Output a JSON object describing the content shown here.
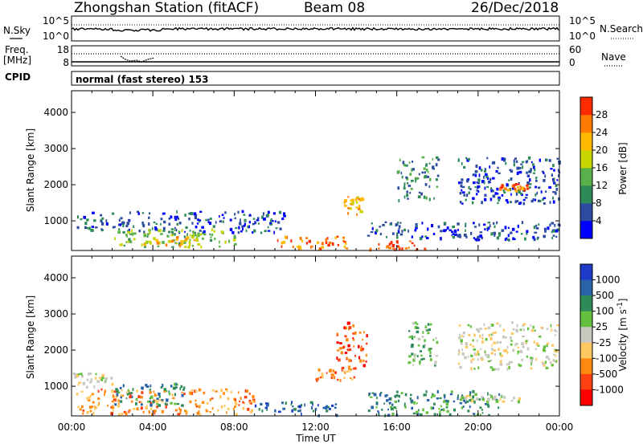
{
  "header": {
    "station": "Zhongshan Station (fitACF)",
    "beam": "Beam 08",
    "date": "26/Dec/2018"
  },
  "strips": {
    "nsky_label": "N.Sky",
    "nsky_ticks": [
      "10^5",
      "10^0"
    ],
    "nsearch_ticks": [
      "10^5",
      "10^0"
    ],
    "nsearch_label": "N.Search",
    "freq_label_1": "Freq.",
    "freq_label_2": "[MHz]",
    "freq_ticks": [
      "18",
      "8"
    ],
    "nave_ticks": [
      "60",
      "0"
    ],
    "nave_label": "Nave",
    "cpid_label": "CPID",
    "cpid_text": "normal (fast stereo) 153"
  },
  "time_ticks": [
    "00:00",
    "04:00",
    "08:00",
    "12:00",
    "16:00",
    "20:00",
    "00:00"
  ],
  "x_label": "Time UT",
  "chart_data": [
    {
      "type": "heatmap",
      "name": "power",
      "ylabel": "Slant Range [km]",
      "x_unit": "hours UT",
      "xlim": [
        0,
        24
      ],
      "ylim": [
        180,
        4600
      ],
      "y_ticks": [
        "1000",
        "2000",
        "3000",
        "4000"
      ],
      "colorbar": {
        "label": "Power [dB]",
        "ticks": [
          "4",
          "8",
          "12",
          "16",
          "20",
          "24",
          "28"
        ],
        "colors": [
          "#0000ff",
          "#2c4ca0",
          "#2e8b57",
          "#5ab04a",
          "#c8d400",
          "#ffb800",
          "#ff7a00",
          "#ff2a00"
        ]
      },
      "regions": [
        {
          "t": [
            0.2,
            10.5
          ],
          "r": [
            700,
            1300
          ],
          "level": 1
        },
        {
          "t": [
            2.0,
            8.0
          ],
          "r": [
            300,
            800
          ],
          "level": 3
        },
        {
          "t": [
            3.5,
            6.5
          ],
          "r": [
            350,
            650
          ],
          "level": 5
        },
        {
          "t": [
            10.0,
            13.5
          ],
          "r": [
            220,
            600
          ],
          "level": 6
        },
        {
          "t": [
            13.3,
            14.3
          ],
          "r": [
            1200,
            1700
          ],
          "level": 5
        },
        {
          "t": [
            14.5,
            24.0
          ],
          "r": [
            500,
            1000
          ],
          "level": 1
        },
        {
          "t": [
            14.5,
            17.5
          ],
          "r": [
            220,
            500
          ],
          "level": 7
        },
        {
          "t": [
            16.0,
            18.0
          ],
          "r": [
            1600,
            2800
          ],
          "level": 2
        },
        {
          "t": [
            19.0,
            24.0
          ],
          "r": [
            1500,
            2800
          ],
          "level": 1
        },
        {
          "t": [
            21.0,
            22.5
          ],
          "r": [
            1850,
            2050
          ],
          "level": 6
        }
      ]
    },
    {
      "type": "heatmap",
      "name": "velocity",
      "ylabel": "Slant Range [km]",
      "x_unit": "hours UT",
      "xlim": [
        0,
        24
      ],
      "ylim": [
        180,
        4600
      ],
      "y_ticks": [
        "1000",
        "2000",
        "3000",
        "4000"
      ],
      "colorbar": {
        "label": "Velocity [m s",
        "label_sup": "-1",
        "label_end": "]",
        "ticks": [
          "1000",
          "500",
          "100",
          "25",
          "-25",
          "-100",
          "-500",
          "-1000"
        ],
        "colors": [
          "#1e3cc8",
          "#2a62a8",
          "#2e8b57",
          "#66c040",
          "#c8c8c0",
          "#ffc860",
          "#ff8a10",
          "#ff4010",
          "#ff0000"
        ]
      },
      "regions": [
        {
          "t": [
            0.2,
            9.0
          ],
          "r": [
            250,
            950
          ],
          "level": 6
        },
        {
          "t": [
            0.0,
            2.0
          ],
          "r": [
            1000,
            1400
          ],
          "level": 4
        },
        {
          "t": [
            2.0,
            5.5
          ],
          "r": [
            500,
            1100
          ],
          "level": 2
        },
        {
          "t": [
            9.0,
            13.0
          ],
          "r": [
            220,
            600
          ],
          "level": 1
        },
        {
          "t": [
            12.0,
            14.0
          ],
          "r": [
            1200,
            1500
          ],
          "level": 6
        },
        {
          "t": [
            13.0,
            14.5
          ],
          "r": [
            1500,
            2800
          ],
          "level": 7
        },
        {
          "t": [
            14.5,
            21.0
          ],
          "r": [
            220,
            900
          ],
          "level": 2
        },
        {
          "t": [
            16.5,
            18.0
          ],
          "r": [
            1600,
            2800
          ],
          "level": 3
        },
        {
          "t": [
            19.0,
            24.0
          ],
          "r": [
            1500,
            2800
          ],
          "level": 4
        },
        {
          "t": [
            19.0,
            22.0
          ],
          "r": [
            600,
            800
          ],
          "level": 4
        }
      ]
    }
  ]
}
